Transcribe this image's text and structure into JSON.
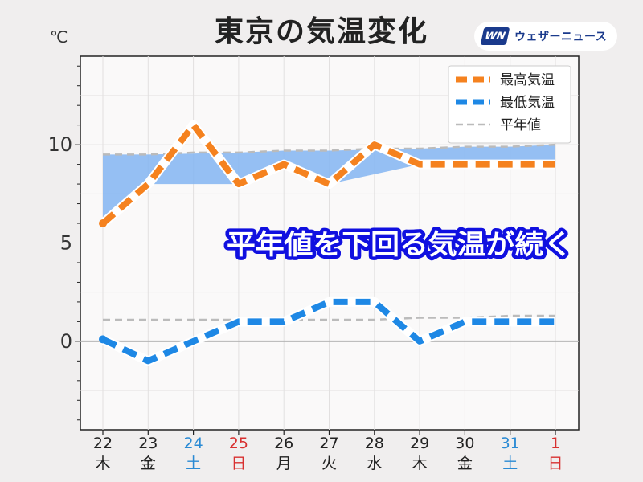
{
  "header": {
    "title": "東京の気温変化",
    "unit": "℃",
    "logo_mark": "WN",
    "logo_text": "ウェザーニュース"
  },
  "annotation": "平年値を下回る気温が続く",
  "colors": {
    "high": "#f5821f",
    "low": "#1e88e5",
    "normal": "#bbbbbb",
    "fill": "#8ab8f2",
    "saturday": "#2a8ad4",
    "sunday": "#d83030",
    "weekday": "#222222"
  },
  "chart_data": {
    "type": "line",
    "categories": [
      "22",
      "23",
      "24",
      "25",
      "26",
      "27",
      "28",
      "29",
      "30",
      "31",
      "1"
    ],
    "weekdays": [
      "木",
      "金",
      "土",
      "日",
      "月",
      "火",
      "水",
      "木",
      "金",
      "土",
      "日"
    ],
    "day_types": [
      "weekday",
      "weekday",
      "saturday",
      "sunday",
      "weekday",
      "weekday",
      "weekday",
      "weekday",
      "weekday",
      "saturday",
      "sunday"
    ],
    "ylim": [
      -4.5,
      14.5
    ],
    "yticks": [
      0,
      5,
      10
    ],
    "series": [
      {
        "name": "最高気温",
        "key": "high",
        "values": [
          6,
          8,
          11,
          8,
          9,
          8,
          10,
          9,
          9,
          9,
          9
        ],
        "style": "dashed-thick"
      },
      {
        "name": "最低気温",
        "key": "low",
        "values": [
          0.1,
          -1,
          0,
          1,
          1,
          2,
          2,
          0,
          1,
          1,
          1
        ],
        "style": "dashed-thick"
      },
      {
        "name": "平年値",
        "key": "normal_high",
        "values": [
          9.5,
          9.5,
          9.6,
          9.6,
          9.7,
          9.7,
          9.8,
          9.8,
          9.9,
          9.9,
          10.0
        ],
        "style": "dashed-thin"
      },
      {
        "name": "",
        "key": "normal_low",
        "values": [
          1.1,
          1.1,
          1.1,
          1.1,
          1.1,
          1.1,
          1.1,
          1.2,
          1.2,
          1.3,
          1.3
        ],
        "style": "dashed-thin"
      }
    ],
    "legend": {
      "placement": "top-right",
      "entries": [
        "最高気温",
        "最低気温",
        "平年値"
      ]
    },
    "grid": true
  }
}
